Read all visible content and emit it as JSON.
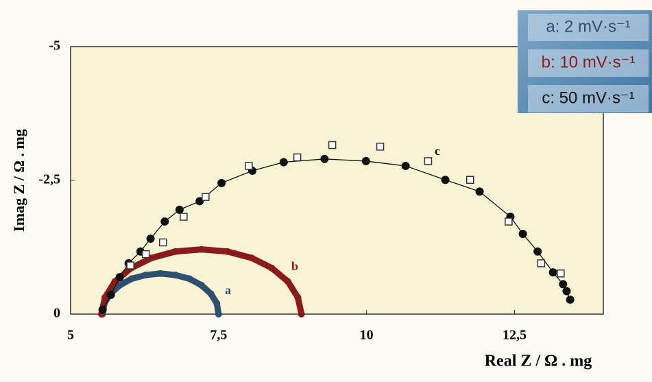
{
  "chart_data": {
    "type": "scatter",
    "xlabel": "Real Z / Ω . mg",
    "ylabel": "Imag Z / Ω . mg",
    "xlim": [
      5,
      14
    ],
    "ylim": [
      0,
      -5
    ],
    "xticks": [
      5,
      {
        "value": 7.5,
        "label": "7,5"
      },
      10,
      {
        "value": 12.5,
        "label": "12,5"
      }
    ],
    "yticks": [
      -5,
      {
        "value": -2.5,
        "label": "-2,5"
      },
      0
    ],
    "annotations": [
      "a",
      "b",
      "c"
    ],
    "series": [
      {
        "name": "a: 2 mV·s⁻¹",
        "color": "#2f4f6e",
        "marker": "dot",
        "x": [
          5.54,
          5.57,
          5.67,
          5.83,
          6.03,
          6.27,
          6.52,
          6.77,
          7.01,
          7.21,
          7.37,
          7.47,
          7.5
        ],
        "y": [
          0,
          -0.2,
          -0.38,
          -0.54,
          -0.66,
          -0.73,
          -0.76,
          -0.73,
          -0.66,
          -0.54,
          -0.38,
          -0.2,
          0
        ]
      },
      {
        "name": "b: 10 mV·s⁻¹",
        "color": "#8b1a1a",
        "marker": "dot",
        "x": [
          5.52,
          5.58,
          5.75,
          6.02,
          6.37,
          6.77,
          7.21,
          7.65,
          8.06,
          8.4,
          8.67,
          8.84,
          8.9
        ],
        "y": [
          0,
          -0.31,
          -0.61,
          -0.86,
          -1.05,
          -1.17,
          -1.21,
          -1.17,
          -1.05,
          -0.86,
          -0.61,
          -0.31,
          0
        ]
      },
      {
        "name": "c: 50 mV·s⁻¹",
        "color": "#111111",
        "marker": "circle",
        "x": [
          5.54,
          5.68,
          5.83,
          5.98,
          6.18,
          6.35,
          6.59,
          6.84,
          7.18,
          7.55,
          8.07,
          8.6,
          9.29,
          9.99,
          10.66,
          11.33,
          11.91,
          12.43,
          12.64,
          12.89,
          13.15,
          13.32,
          13.38,
          13.44
        ],
        "y": [
          -0.08,
          -0.36,
          -0.69,
          -0.95,
          -1.17,
          -1.41,
          -1.73,
          -1.95,
          -2.11,
          -2.45,
          -2.68,
          -2.84,
          -2.9,
          -2.86,
          -2.77,
          -2.51,
          -2.29,
          -1.82,
          -1.5,
          -1.17,
          -0.78,
          -0.56,
          -0.43,
          -0.27
        ]
      },
      {
        "color": "#333333",
        "marker": "square",
        "x": [
          6.01,
          6.27,
          6.56,
          6.91,
          7.28,
          8.01,
          8.83,
          9.42,
          10.23,
          11.04,
          11.75,
          12.4,
          12.95,
          13.28
        ],
        "y": [
          -0.91,
          -1.12,
          -1.34,
          -1.82,
          -2.19,
          -2.77,
          -2.93,
          -3.16,
          -3.13,
          -2.86,
          -2.51,
          -1.73,
          -0.95,
          -0.76
        ]
      }
    ]
  }
}
